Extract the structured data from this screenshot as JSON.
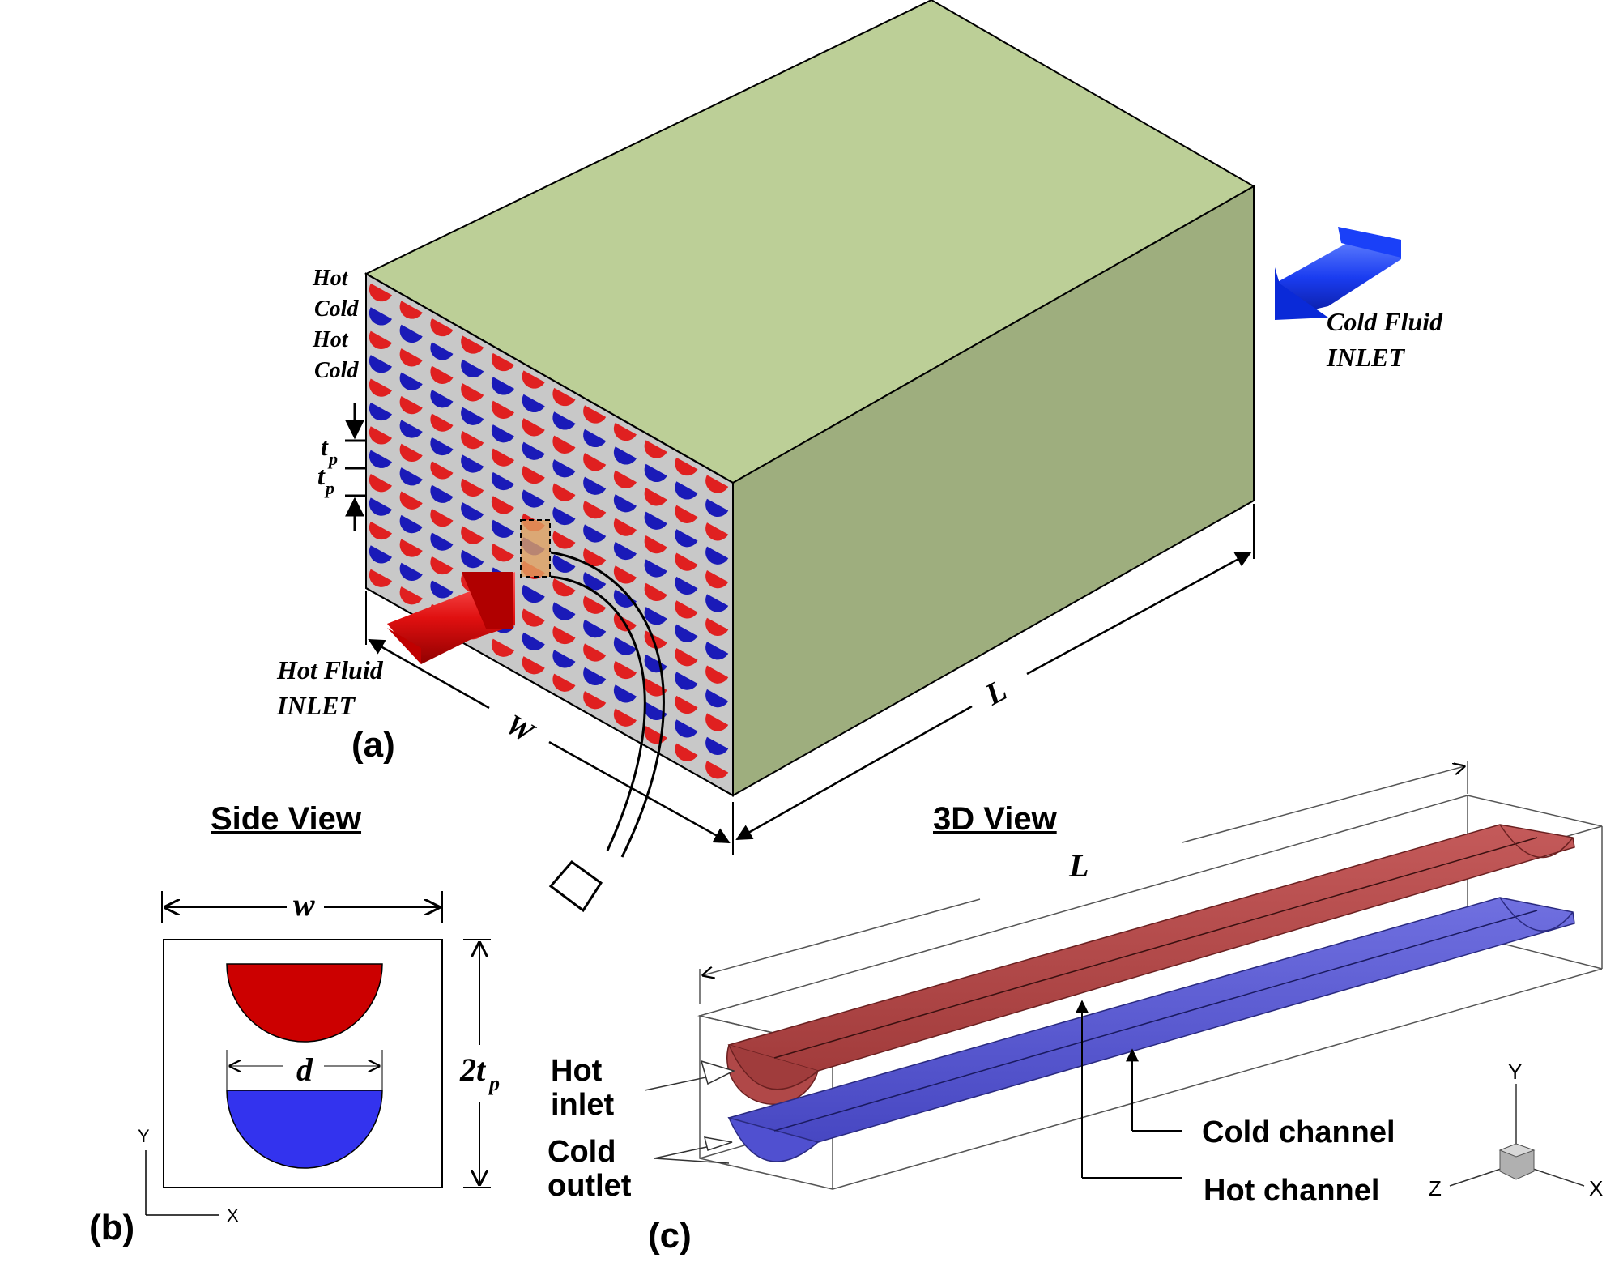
{
  "panel_a": {
    "label": "(a)",
    "layers": [
      "Hot",
      "Cold",
      "Hot",
      "Cold"
    ],
    "tp_label_top": "t",
    "tp_label_bottom": "t",
    "tp_sub": "p",
    "hot_inlet": [
      "Hot Fluid",
      "INLET"
    ],
    "cold_inlet": [
      "Cold Fluid",
      "INLET"
    ],
    "w_label": "W",
    "l_label": "L",
    "colors": {
      "top_face": "#bccf97",
      "side_face": "#9eae7e",
      "front_face": "#c8c8c8",
      "hot": "#e02020",
      "cold": "#1a1ab8"
    }
  },
  "panel_b": {
    "title": "Side View",
    "label": "(b)",
    "w_label": "w",
    "d_label": "d",
    "height_label": "2t",
    "height_sub": "p",
    "axis_y": "Y",
    "axis_x": "X",
    "colors": {
      "hot": "#cc0000",
      "cold": "#3333ee"
    }
  },
  "panel_c": {
    "title": "3D View",
    "label": "(c)",
    "l_label": "L",
    "hot_inlet": [
      "Hot",
      "inlet"
    ],
    "cold_outlet": [
      "Cold",
      "outlet"
    ],
    "cold_channel": "Cold channel",
    "hot_channel": "Hot channel",
    "axis_y": "Y",
    "axis_z": "Z",
    "axis_x": "X",
    "colors": {
      "hot": "#b84848",
      "cold": "#5a5ad8"
    }
  }
}
